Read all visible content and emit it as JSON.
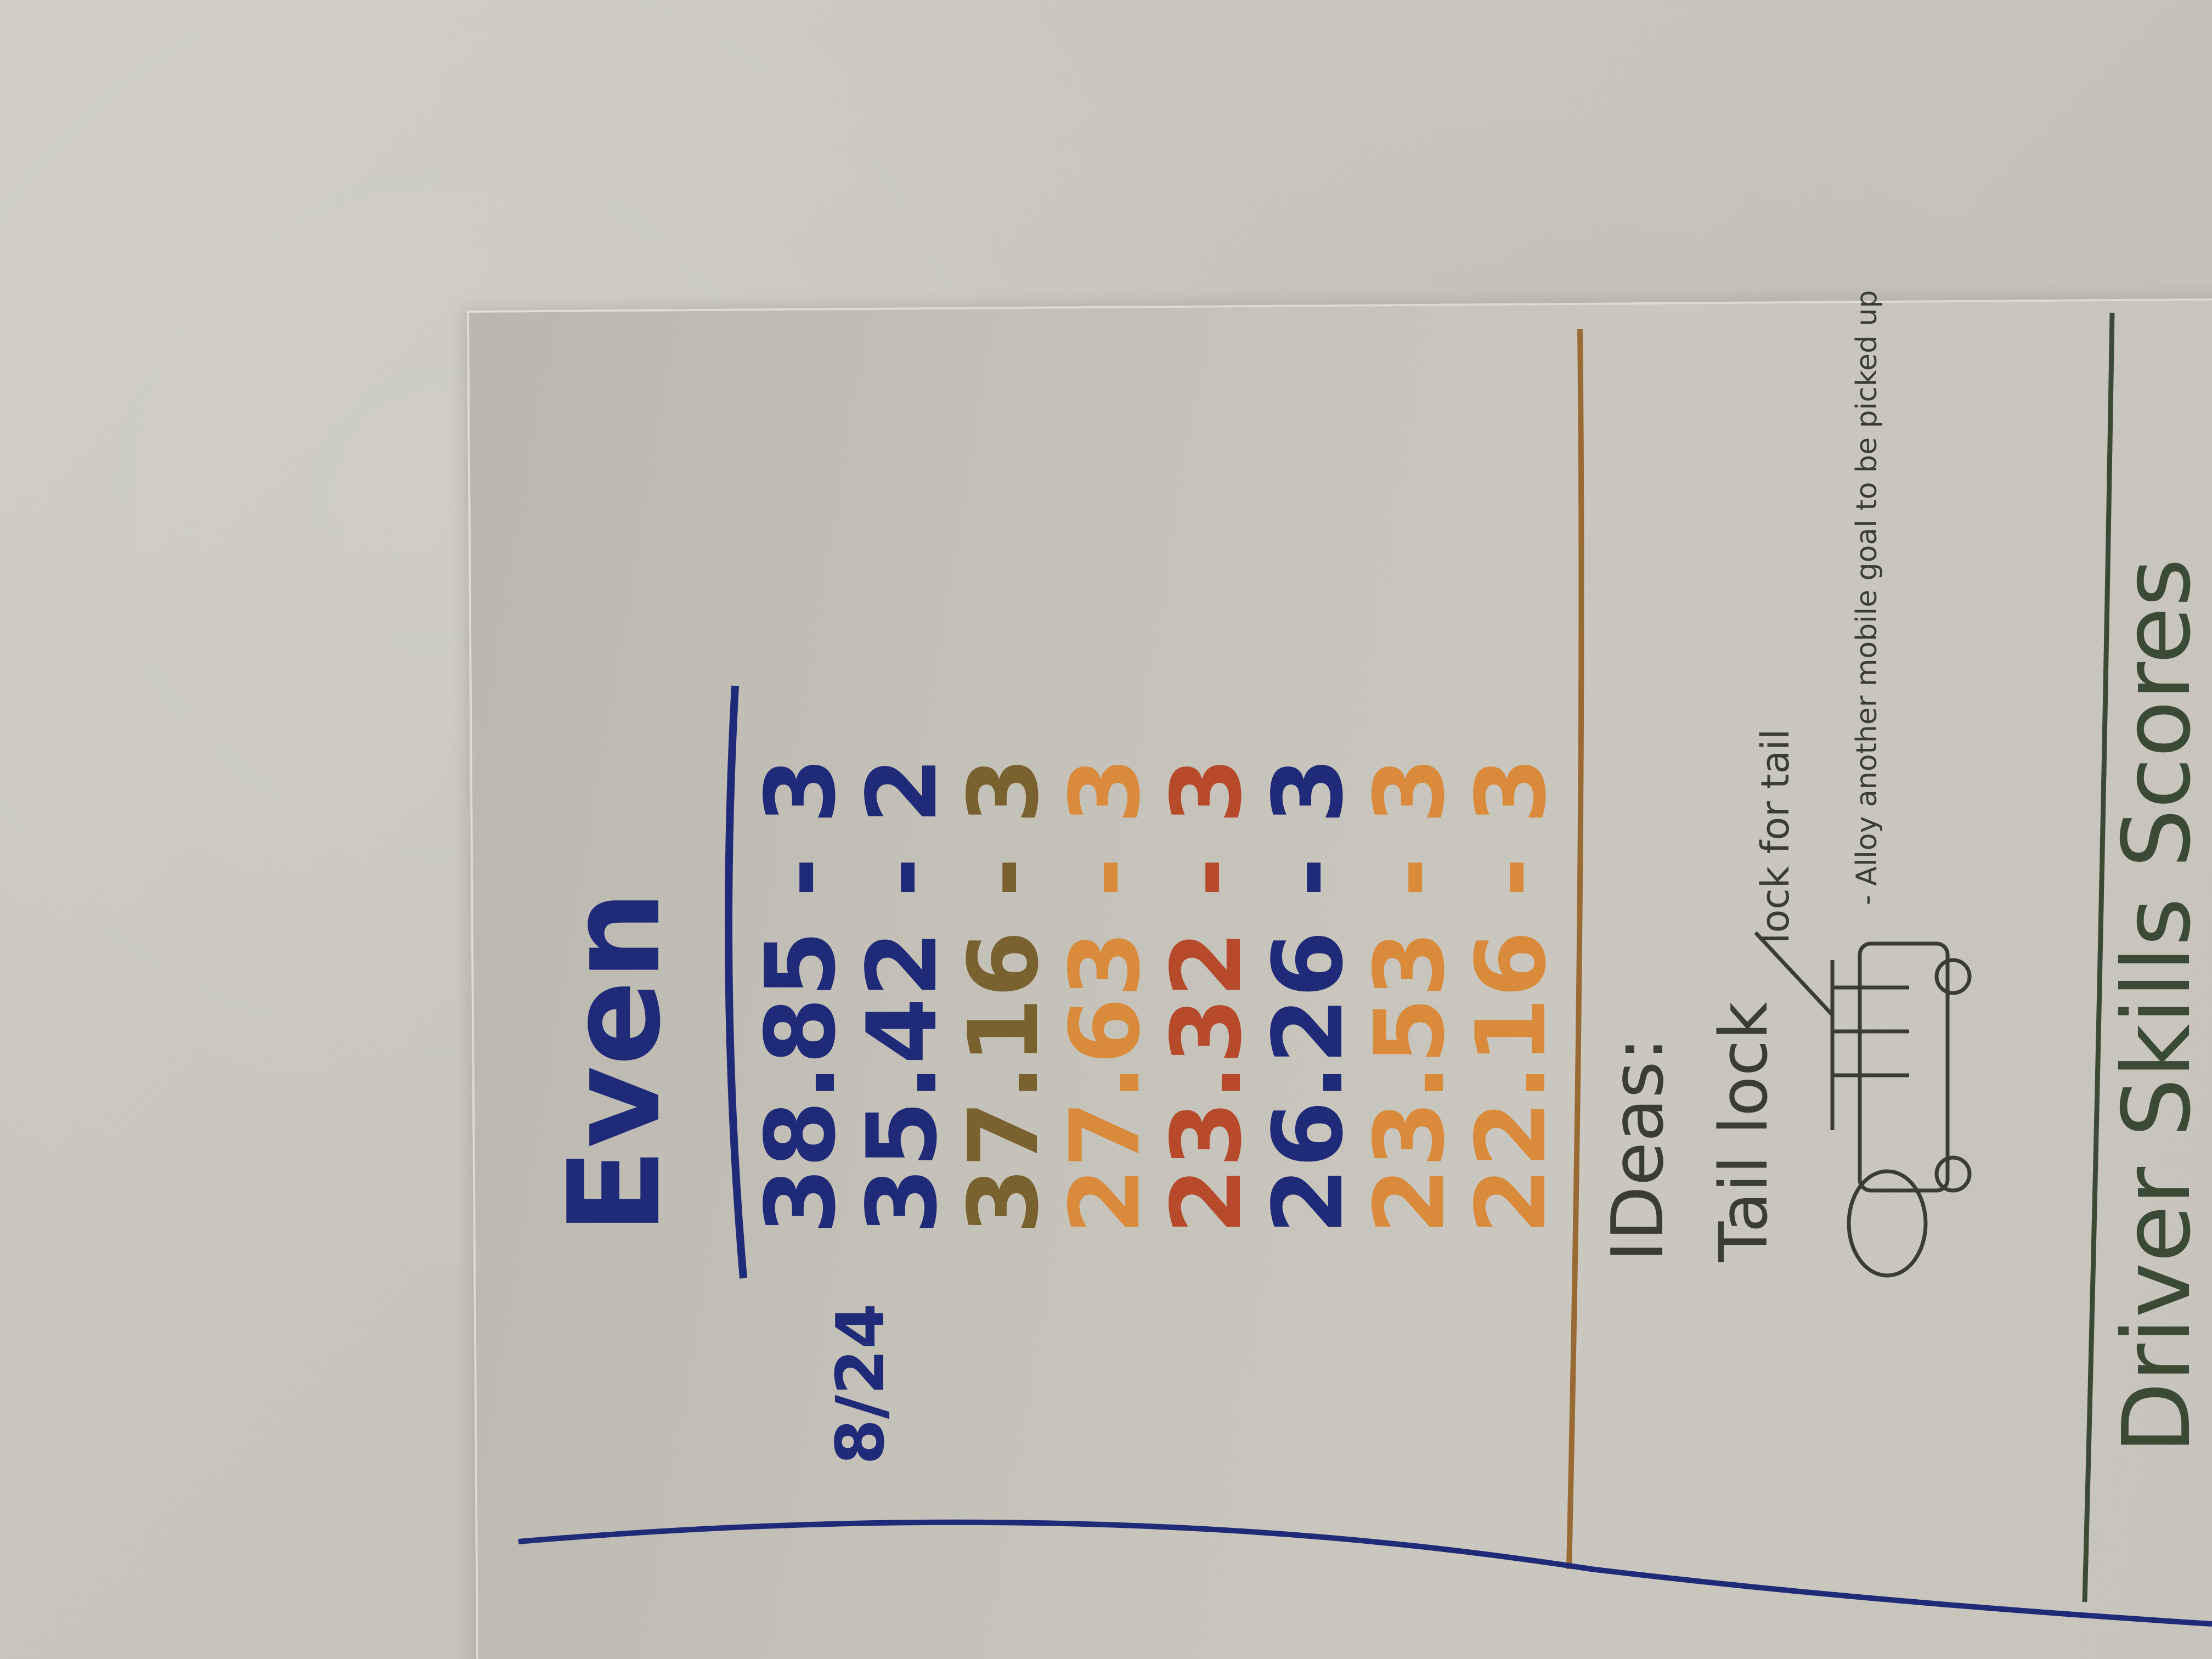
{
  "note": {
    "title": "Even",
    "date": "8/24",
    "scores": [
      {
        "value": "38.85",
        "penalty": "3",
        "color": "#1f2a78"
      },
      {
        "value": "35.42",
        "penalty": "2",
        "color": "#1f2a78"
      },
      {
        "value": "37.16",
        "penalty": "3",
        "color": "#7a6230"
      },
      {
        "value": "27.63",
        "penalty": "3",
        "color": "#d98a3a"
      },
      {
        "value": "23.32",
        "penalty": "3",
        "color": "#b64a2a"
      },
      {
        "value": "26.26",
        "penalty": "3",
        "color": "#1f2a78"
      },
      {
        "value": "23.53",
        "penalty": "3",
        "color": "#d98a3a"
      },
      {
        "value": "22.16",
        "penalty": "3",
        "color": "#d98a3a"
      }
    ],
    "ideas": {
      "heading": "IDeas:",
      "item": "Tail lock",
      "callout": "lock for tail",
      "sketch_note": "- Alloy another mobile goal to be picked up"
    },
    "footer": "Driver Skills Scores"
  },
  "colors": {
    "wall": "#c9c7bd",
    "paper": "#c6c4bb",
    "blue_ink": "#1f2a78",
    "orange_ink": "#d98a3a",
    "red_ink": "#b64a2a",
    "brown_rule": "#9a6a35",
    "pencil": "#3a3d33"
  }
}
